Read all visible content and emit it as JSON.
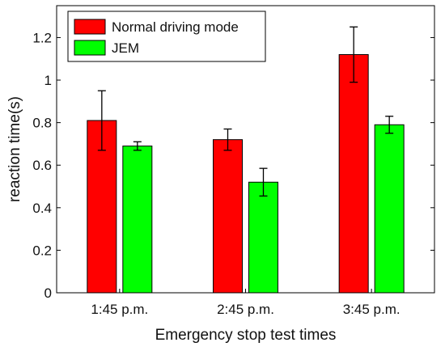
{
  "chart_data": {
    "type": "bar",
    "categories": [
      "1:45 p.m.",
      "2:45 p.m.",
      "3:45 p.m."
    ],
    "series": [
      {
        "name": "Normal driving mode",
        "color": "#ff0000",
        "values": [
          0.81,
          0.72,
          1.12
        ],
        "errors": [
          0.14,
          0.05,
          0.13
        ]
      },
      {
        "name": "JEM",
        "color": "#00ff00",
        "values": [
          0.69,
          0.52,
          0.79
        ],
        "errors": [
          0.02,
          0.065,
          0.04
        ]
      }
    ],
    "xlabel": "Emergency stop test times",
    "ylabel": "reaction time(s)",
    "ylim": [
      0,
      1.35
    ],
    "yticks": [
      0,
      0.2,
      0.4,
      0.6,
      0.8,
      1,
      1.2
    ],
    "ytick_labels": [
      "0",
      "0.2",
      "0.4",
      "0.6",
      "0.8",
      "1",
      "1.2"
    ],
    "grid": false,
    "legend_position": "top-left"
  }
}
